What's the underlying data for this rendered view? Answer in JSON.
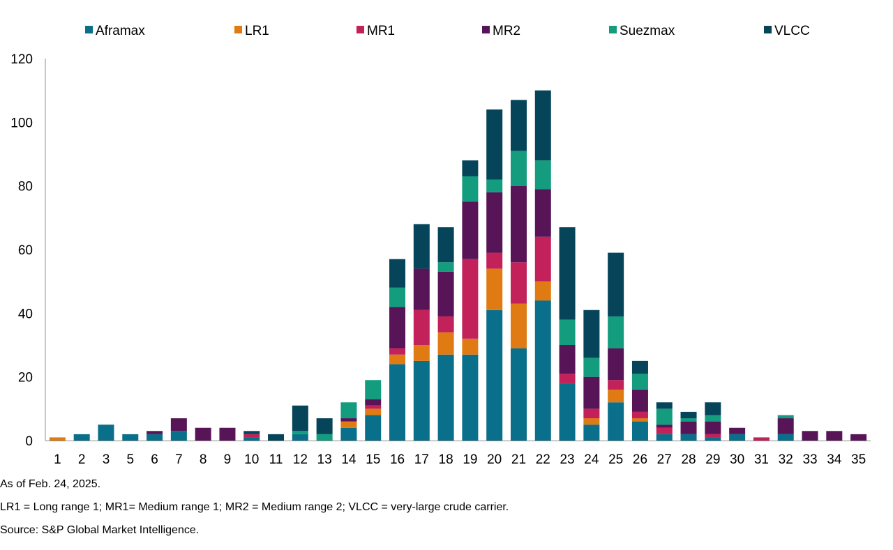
{
  "chart_data": {
    "type": "bar",
    "stacked": true,
    "categories": [
      "1",
      "2",
      "3",
      "5",
      "6",
      "7",
      "8",
      "9",
      "10",
      "11",
      "12",
      "13",
      "14",
      "15",
      "16",
      "17",
      "18",
      "19",
      "20",
      "21",
      "22",
      "23",
      "24",
      "25",
      "26",
      "27",
      "28",
      "29",
      "30",
      "31",
      "32",
      "33",
      "34",
      "35"
    ],
    "series": [
      {
        "name": "Aframax",
        "color": "#0a6f8a",
        "values": [
          0,
          2,
          5,
          2,
          2,
          3,
          0,
          0,
          1,
          0,
          2,
          0,
          4,
          8,
          24,
          25,
          27,
          27,
          41,
          29,
          44,
          18,
          5,
          12,
          6,
          2,
          2,
          1,
          2,
          0,
          2,
          0,
          0,
          0
        ]
      },
      {
        "name": "LR1",
        "color": "#e07b14",
        "values": [
          1,
          0,
          0,
          0,
          0,
          0,
          0,
          0,
          0,
          0,
          0,
          0,
          2,
          2,
          3,
          5,
          7,
          5,
          13,
          14,
          6,
          0,
          2,
          4,
          1,
          0,
          0,
          0,
          0,
          0,
          0,
          0,
          0,
          0
        ]
      },
      {
        "name": "MR1",
        "color": "#c3215a",
        "values": [
          0,
          0,
          0,
          0,
          0,
          0,
          0,
          0,
          1,
          0,
          0,
          0,
          0,
          1,
          2,
          11,
          5,
          25,
          5,
          13,
          14,
          3,
          3,
          3,
          2,
          2,
          0,
          1,
          0,
          1,
          0,
          0,
          0,
          0
        ]
      },
      {
        "name": "MR2",
        "color": "#571558",
        "values": [
          0,
          0,
          0,
          0,
          1,
          4,
          4,
          4,
          0,
          0,
          0,
          0,
          1,
          2,
          13,
          13,
          14,
          18,
          19,
          24,
          15,
          9,
          10,
          10,
          7,
          1,
          4,
          4,
          2,
          0,
          5,
          3,
          3,
          2
        ]
      },
      {
        "name": "Suezmax",
        "color": "#139d7e",
        "values": [
          0,
          0,
          0,
          0,
          0,
          0,
          0,
          0,
          0,
          0,
          1,
          2,
          5,
          6,
          6,
          0,
          3,
          8,
          4,
          11,
          9,
          8,
          6,
          10,
          5,
          5,
          1,
          2,
          0,
          0,
          1,
          0,
          0,
          0
        ]
      },
      {
        "name": "VLCC",
        "color": "#06445a",
        "values": [
          0,
          0,
          0,
          0,
          0,
          0,
          0,
          0,
          1,
          2,
          8,
          5,
          0,
          0,
          9,
          14,
          11,
          5,
          22,
          16,
          22,
          29,
          15,
          20,
          4,
          2,
          2,
          4,
          0,
          0,
          0,
          0,
          0,
          0
        ]
      }
    ],
    "ylim": [
      0,
      120
    ],
    "yticks": [
      0,
      20,
      40,
      60,
      80,
      100,
      120
    ],
    "title": "",
    "xlabel": "",
    "ylabel": "",
    "legend_position": "top",
    "grid": false
  },
  "notes": {
    "as_of": "As of Feb. 24, 2025.",
    "abbreviations": "LR1 = Long range 1; MR1= Medium range 1; MR2 = Medium range 2; VLCC = very-large crude carrier.",
    "source": "Source: S&P Global Market Intelligence."
  }
}
